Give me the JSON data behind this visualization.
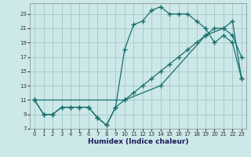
{
  "xlabel": "Humidex (Indice chaleur)",
  "bg_color": "#cce8e8",
  "grid_color": "#aacccc",
  "line_color": "#1a6e6e",
  "xlim": [
    -0.5,
    23.5
  ],
  "ylim": [
    7,
    24.5
  ],
  "xticks": [
    0,
    1,
    2,
    3,
    4,
    5,
    6,
    7,
    8,
    9,
    10,
    11,
    12,
    13,
    14,
    15,
    16,
    17,
    18,
    19,
    20,
    21,
    22,
    23
  ],
  "yticks": [
    7,
    9,
    11,
    13,
    15,
    17,
    19,
    21,
    23
  ],
  "line1_x": [
    0,
    1,
    2,
    3,
    4,
    5,
    6,
    7,
    8,
    9,
    10,
    11,
    12,
    13,
    14,
    15,
    16,
    17,
    18,
    19,
    20,
    21,
    22,
    23
  ],
  "line1_y": [
    11,
    9,
    9,
    10,
    10,
    10,
    10,
    8.5,
    7.5,
    10,
    11,
    12,
    13,
    14,
    15,
    16,
    17,
    18,
    19,
    20,
    21,
    21,
    20,
    17
  ],
  "line2_x": [
    0,
    1,
    2,
    3,
    4,
    5,
    6,
    7,
    8,
    9,
    10,
    11,
    12,
    13,
    14,
    15,
    16,
    17,
    18,
    19,
    20,
    21,
    22,
    23
  ],
  "line2_y": [
    11,
    9,
    9,
    10,
    10,
    10,
    10,
    8.5,
    7.5,
    10,
    18,
    21.5,
    22,
    23.5,
    24,
    23,
    23,
    23,
    22,
    21,
    19,
    20,
    19,
    14
  ],
  "line3_x": [
    0,
    10,
    14,
    19,
    21,
    22,
    23
  ],
  "line3_y": [
    11,
    11,
    13,
    20,
    21,
    22,
    14
  ]
}
